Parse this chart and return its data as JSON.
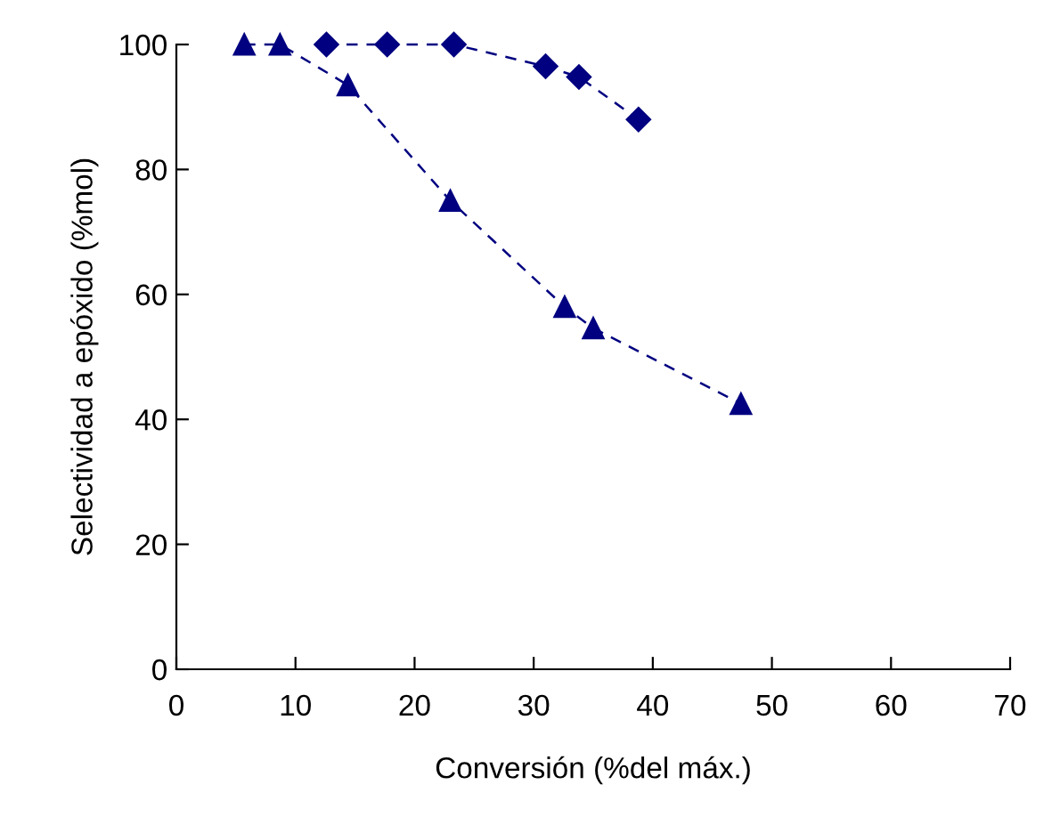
{
  "chart_data": {
    "type": "line",
    "xlabel": "Conversión (%del máx.)",
    "ylabel": "Selectividad a epóxido (%mol)",
    "series": [
      {
        "color": "#000080",
        "marker": "diamond",
        "x": [
          12.6,
          17.7,
          23.3,
          31.0,
          33.8,
          38.8
        ],
        "values": [
          100,
          100,
          100,
          96.5,
          94.8,
          88
        ]
      },
      {
        "color": "#000080",
        "marker": "triangle",
        "x": [
          5.7,
          8.7,
          14.4,
          23.0,
          32.6,
          35.0,
          47.4
        ],
        "values": [
          100,
          100,
          93.5,
          75,
          58,
          54.6,
          42.5
        ]
      }
    ],
    "line_style": "dashed",
    "xlim": [
      0,
      70
    ],
    "xticks": [
      0,
      10,
      20,
      30,
      40,
      50,
      60,
      70
    ],
    "ylim": [
      0,
      100
    ],
    "yticks": [
      0,
      20,
      40,
      60,
      80,
      100
    ],
    "grid": false,
    "legend": false
  }
}
